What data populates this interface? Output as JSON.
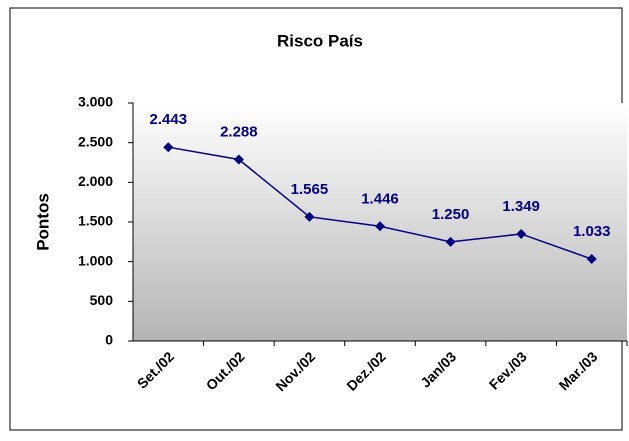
{
  "chart_data": {
    "type": "line",
    "title": "Risco País",
    "ylabel": "Pontos",
    "categories": [
      "Set./02",
      "Out./02",
      "Nov./02",
      "Dez./02",
      "Jan/03",
      "Fev./03",
      "Mar./03"
    ],
    "series": [
      {
        "name": "Risco País",
        "color": "#000080",
        "values": [
          2443,
          2288,
          1565,
          1446,
          1250,
          1349,
          1033
        ],
        "value_labels": [
          "2.443",
          "2.288",
          "1.565",
          "1.446",
          "1.250",
          "1.349",
          "1.033"
        ]
      }
    ],
    "ylim": [
      0,
      3000
    ],
    "yticks": [
      0,
      500,
      {
        "value": 1000,
        "label": "1.000"
      },
      {
        "value": 1500,
        "label": "1.500"
      },
      {
        "value": 2000,
        "label": "2.000"
      },
      {
        "value": 2500,
        "label": "2.500"
      },
      {
        "value": 3000,
        "label": "3.000"
      }
    ]
  }
}
